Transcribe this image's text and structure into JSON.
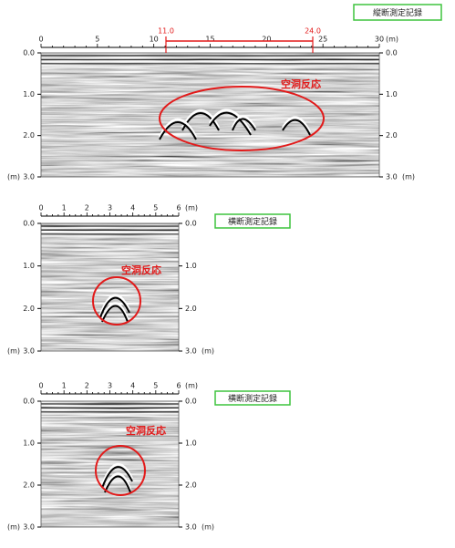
{
  "panels": [
    {
      "label": "縦断測定記録",
      "x_ticks": [
        "0",
        "5",
        "10",
        "15",
        "20",
        "25",
        "30"
      ],
      "x_unit": "(m)",
      "y_ticks": [
        "0.0",
        "1.0",
        "2.0",
        "3.0"
      ],
      "y_unit": "(m)",
      "annotation": "空洞反応",
      "range_markers": [
        "11.0",
        "24.0"
      ]
    },
    {
      "label": "横断測定記録",
      "x_ticks": [
        "0",
        "1",
        "2",
        "3",
        "4",
        "5",
        "6"
      ],
      "x_unit": "(m)",
      "y_ticks": [
        "0.0",
        "1.0",
        "2.0",
        "3.0"
      ],
      "y_unit": "(m)",
      "annotation": "空洞反応"
    },
    {
      "label": "横断測定記録",
      "x_ticks": [
        "0",
        "1",
        "2",
        "3",
        "4",
        "5",
        "6"
      ],
      "x_unit": "(m)",
      "y_ticks": [
        "0.0",
        "1.0",
        "2.0",
        "3.0"
      ],
      "y_unit": "(m)",
      "annotation": "空洞反応"
    }
  ]
}
